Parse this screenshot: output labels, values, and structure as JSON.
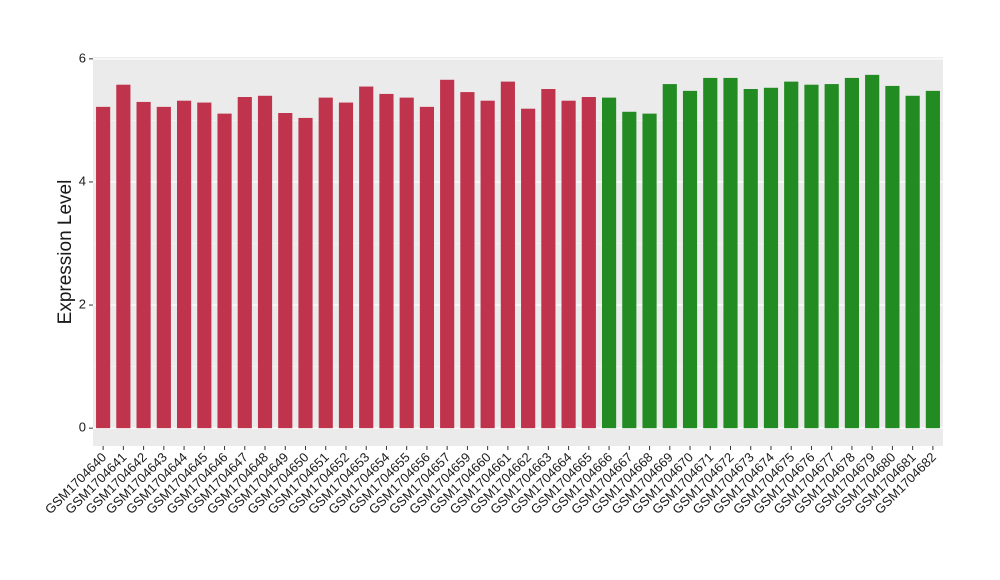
{
  "chart_data": {
    "type": "bar",
    "y_label": "Expression Level",
    "categories": [
      "GSM1704640",
      "GSM1704641",
      "GSM1704642",
      "GSM1704643",
      "GSM1704644",
      "GSM1704645",
      "GSM1704646",
      "GSM1704647",
      "GSM1704648",
      "GSM1704649",
      "GSM1704650",
      "GSM1704651",
      "GSM1704652",
      "GSM1704653",
      "GSM1704654",
      "GSM1704655",
      "GSM1704656",
      "GSM1704657",
      "GSM1704659",
      "GSM1704660",
      "GSM1704661",
      "GSM1704662",
      "GSM1704663",
      "GSM1704664",
      "GSM1704665",
      "GSM1704666",
      "GSM1704667",
      "GSM1704668",
      "GSM1704669",
      "GSM1704670",
      "GSM1704671",
      "GSM1704672",
      "GSM1704673",
      "GSM1704674",
      "GSM1704675",
      "GSM1704676",
      "GSM1704677",
      "GSM1704678",
      "GSM1704679",
      "GSM1704680",
      "GSM1704681",
      "GSM1704682"
    ],
    "values": [
      5.22,
      5.58,
      5.3,
      5.22,
      5.32,
      5.29,
      5.11,
      5.38,
      5.4,
      5.12,
      5.04,
      5.37,
      5.29,
      5.55,
      5.43,
      5.37,
      5.22,
      5.66,
      5.46,
      5.32,
      5.63,
      5.19,
      5.51,
      5.32,
      5.38,
      5.37,
      5.14,
      5.11,
      5.59,
      5.48,
      5.69,
      5.69,
      5.51,
      5.53,
      5.63,
      5.58,
      5.59,
      5.69,
      5.74,
      5.56,
      5.4,
      5.48
    ],
    "colors": [
      "#c0334d",
      "#c0334d",
      "#c0334d",
      "#c0334d",
      "#c0334d",
      "#c0334d",
      "#c0334d",
      "#c0334d",
      "#c0334d",
      "#c0334d",
      "#c0334d",
      "#c0334d",
      "#c0334d",
      "#c0334d",
      "#c0334d",
      "#c0334d",
      "#c0334d",
      "#c0334d",
      "#c0334d",
      "#c0334d",
      "#c0334d",
      "#c0334d",
      "#c0334d",
      "#c0334d",
      "#c0334d",
      "#228b22",
      "#228b22",
      "#228b22",
      "#228b22",
      "#228b22",
      "#228b22",
      "#228b22",
      "#228b22",
      "#228b22",
      "#228b22",
      "#228b22",
      "#228b22",
      "#228b22",
      "#228b22",
      "#228b22",
      "#228b22",
      "#228b22"
    ],
    "ylim": [
      -0.29,
      6.03
    ],
    "yticks": [
      0,
      2,
      4,
      6
    ],
    "grid": true
  }
}
